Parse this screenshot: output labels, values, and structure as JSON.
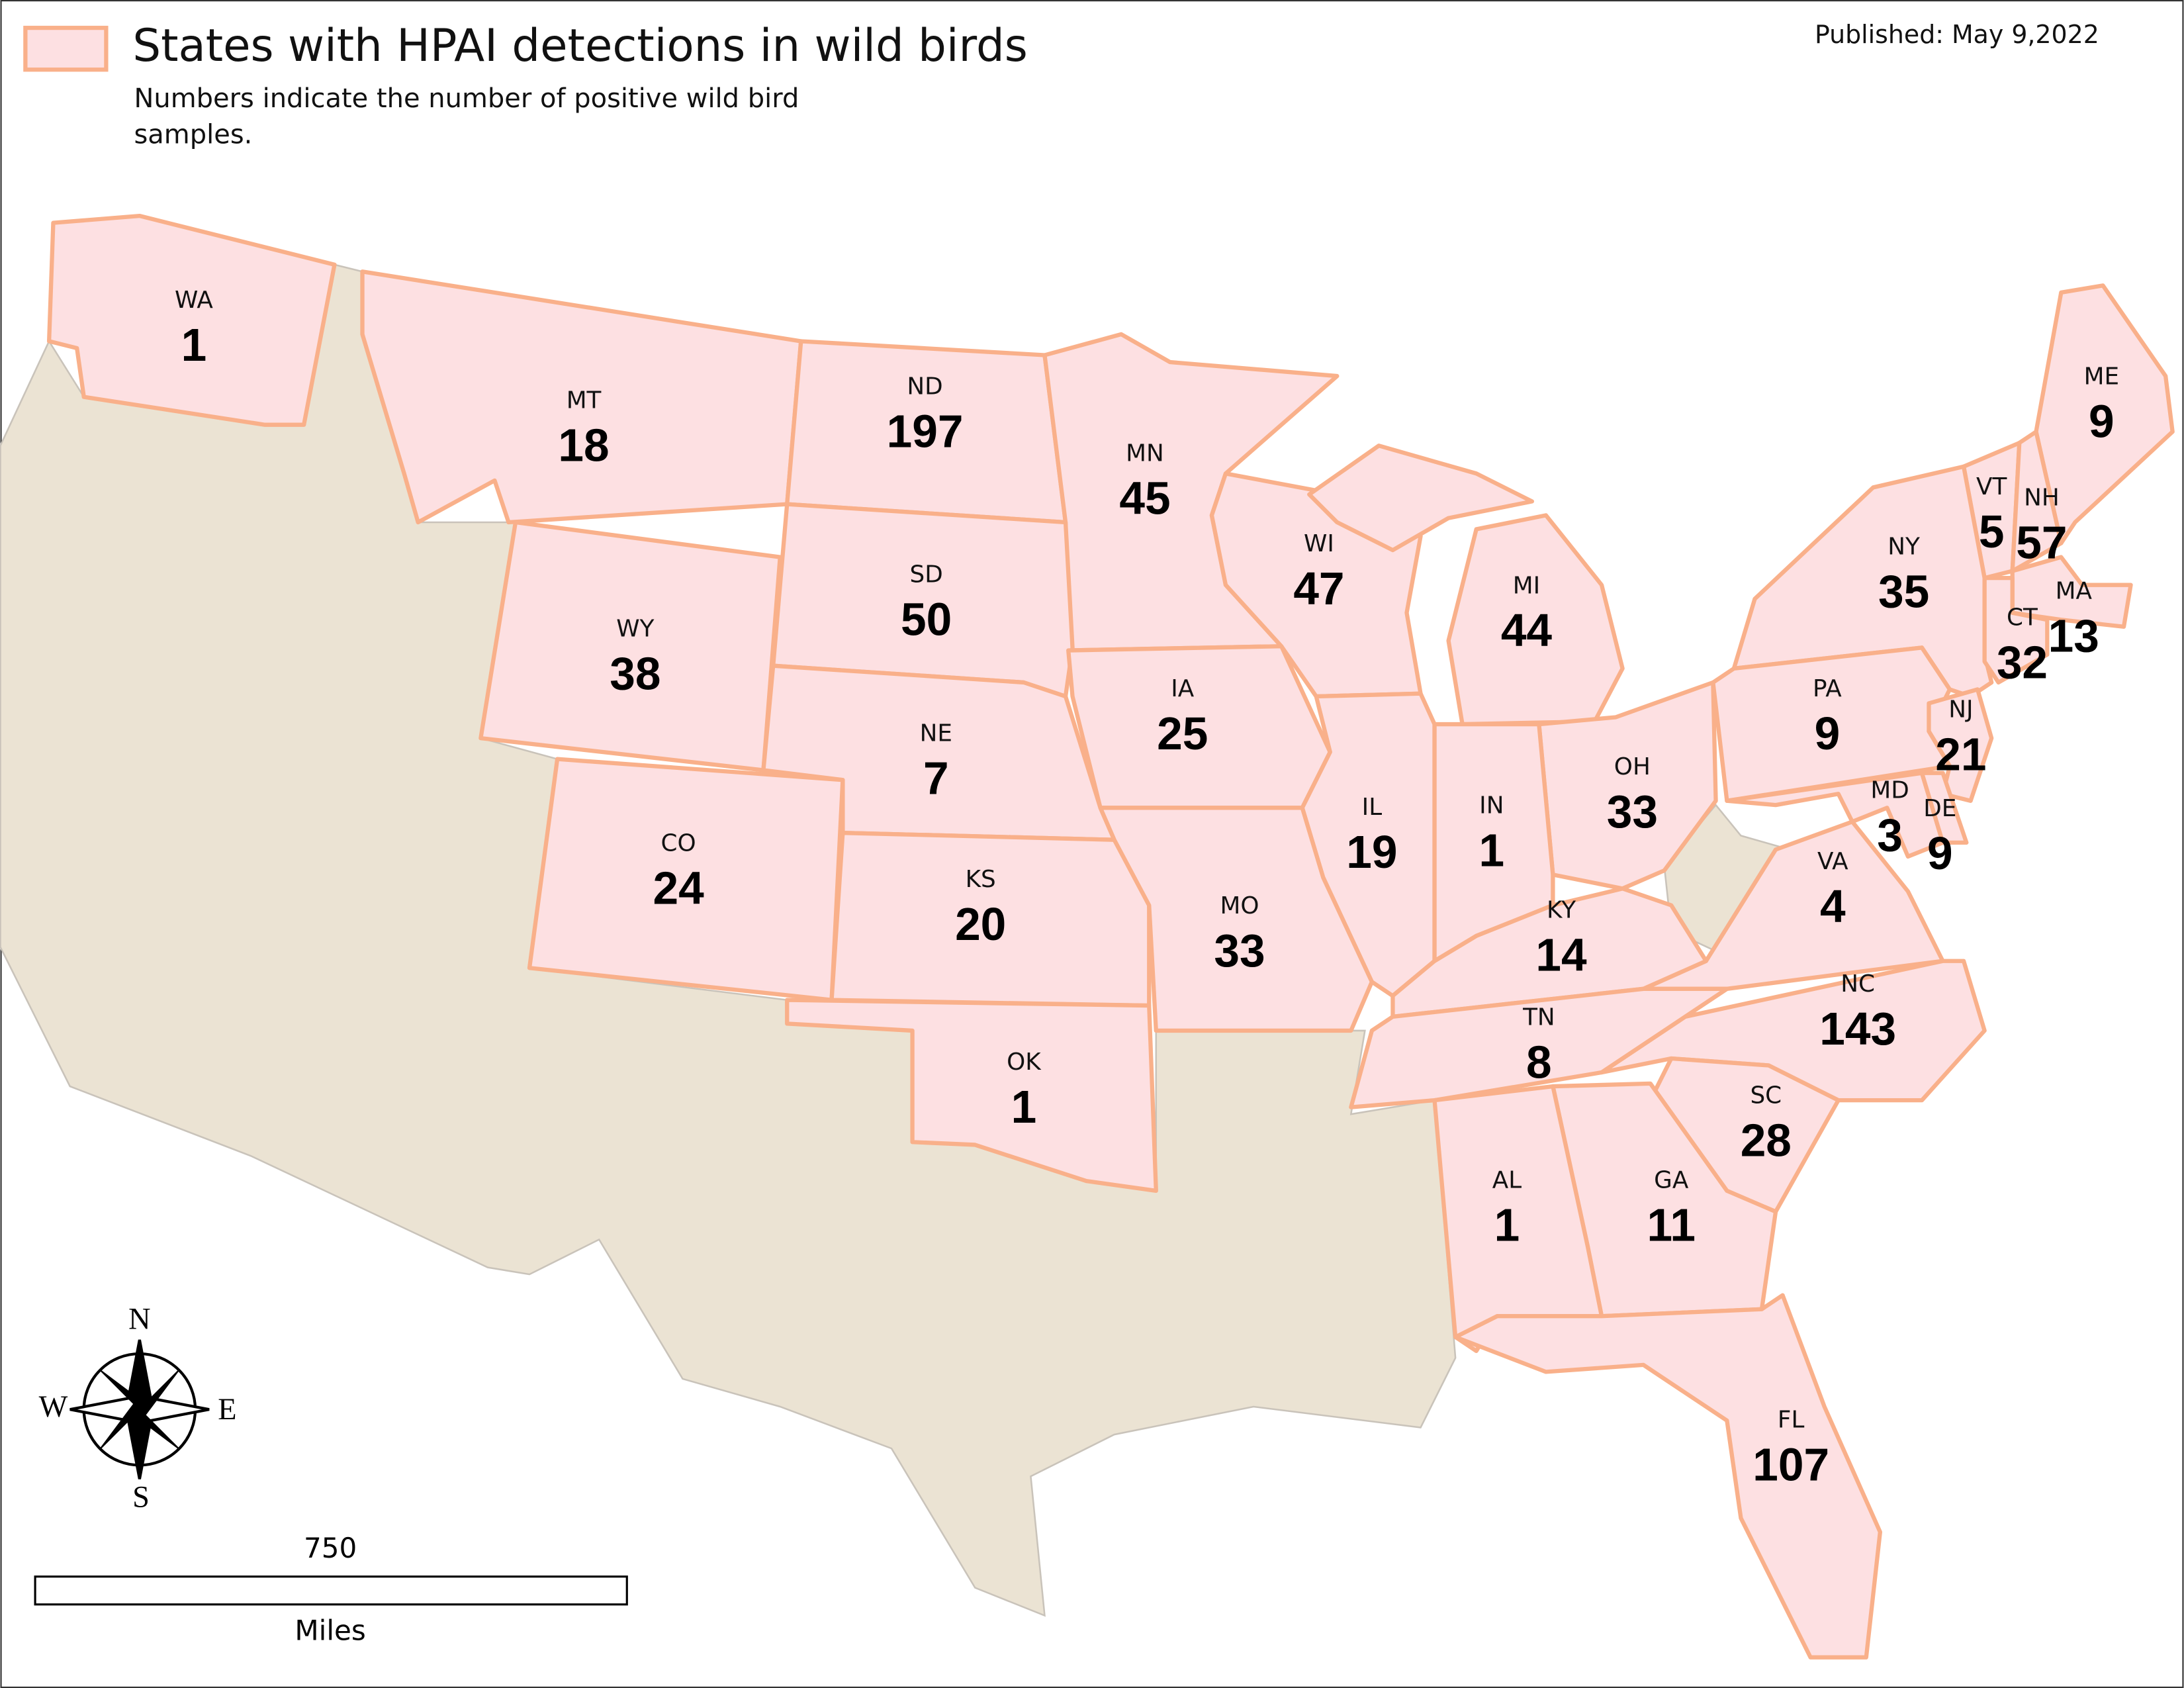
{
  "legend": {
    "label": "States with HPAI detections in wild birds"
  },
  "published": "Published: May 9,2022",
  "subtitle": "Numbers indicate the number of positive wild bird samples.",
  "states": [
    {
      "abbr": "WA",
      "count": 1
    },
    {
      "abbr": "MT",
      "count": 18
    },
    {
      "abbr": "ND",
      "count": 197
    },
    {
      "abbr": "MN",
      "count": 45
    },
    {
      "abbr": "WI",
      "count": 47
    },
    {
      "abbr": "MI",
      "count": 44
    },
    {
      "abbr": "SD",
      "count": 50
    },
    {
      "abbr": "WY",
      "count": 38
    },
    {
      "abbr": "IA",
      "count": 25
    },
    {
      "abbr": "NE",
      "count": 7
    },
    {
      "abbr": "ME",
      "count": 9
    },
    {
      "abbr": "VT",
      "count": 5
    },
    {
      "abbr": "NH",
      "count": 57
    },
    {
      "abbr": "NY",
      "count": 35
    },
    {
      "abbr": "MA",
      "count": 13
    },
    {
      "abbr": "CT",
      "count": 32
    },
    {
      "abbr": "PA",
      "count": 9
    },
    {
      "abbr": "NJ",
      "count": 21
    },
    {
      "abbr": "OH",
      "count": 33
    },
    {
      "abbr": "IL",
      "count": 19
    },
    {
      "abbr": "IN",
      "count": 1
    },
    {
      "abbr": "CO",
      "count": 24
    },
    {
      "abbr": "KS",
      "count": 20
    },
    {
      "abbr": "MD",
      "count": 3
    },
    {
      "abbr": "DE",
      "count": 9
    },
    {
      "abbr": "VA",
      "count": 4
    },
    {
      "abbr": "MO",
      "count": 33
    },
    {
      "abbr": "KY",
      "count": 14
    },
    {
      "abbr": "NC",
      "count": 143
    },
    {
      "abbr": "TN",
      "count": 8
    },
    {
      "abbr": "OK",
      "count": 1
    },
    {
      "abbr": "SC",
      "count": 28
    },
    {
      "abbr": "AL",
      "count": 1
    },
    {
      "abbr": "GA",
      "count": 11
    },
    {
      "abbr": "FL",
      "count": 107
    }
  ],
  "compass": {
    "n": "N",
    "e": "E",
    "s": "S",
    "w": "W"
  },
  "scale_bar": {
    "value": 750,
    "unit": "Miles"
  }
}
